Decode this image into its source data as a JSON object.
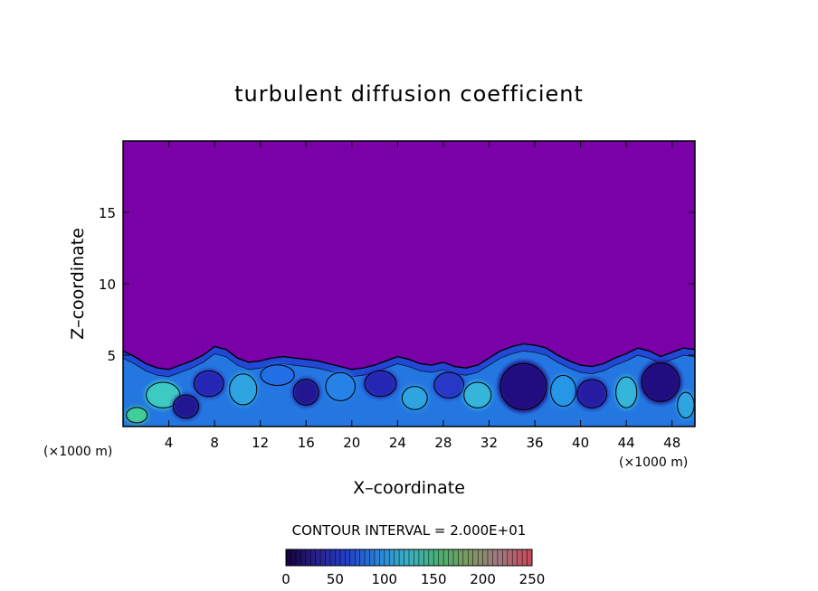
{
  "chart_data": {
    "type": "heatmap",
    "title": "turbulent diffusion coefficient",
    "xlabel": "X–coordinate",
    "ylabel": "Z–coordinate",
    "x_unit_left": "(×1000 m)",
    "x_unit_right": "(×1000 m)",
    "xlim": [
      0,
      50
    ],
    "ylim": [
      0,
      20
    ],
    "x_ticks": [
      4,
      8,
      12,
      16,
      20,
      24,
      28,
      32,
      36,
      40,
      44,
      48
    ],
    "y_ticks": [
      5,
      10,
      15
    ],
    "contour_interval_text": "CONTOUR INTERVAL = 2.000E+01",
    "contour_interval": 20,
    "colorbar": {
      "min": 0,
      "max": 250,
      "ticks": [
        0,
        50,
        100,
        150,
        200,
        250
      ]
    },
    "background_value": 0,
    "turbulent_layer_top_profile": {
      "x": [
        0,
        1,
        2,
        3,
        4,
        5,
        6,
        7,
        8,
        9,
        10,
        11,
        12,
        13,
        14,
        15,
        16,
        17,
        18,
        19,
        20,
        21,
        22,
        23,
        24,
        25,
        26,
        27,
        28,
        29,
        30,
        31,
        32,
        33,
        34,
        35,
        36,
        37,
        38,
        39,
        40,
        41,
        42,
        43,
        44,
        45,
        46,
        47,
        48,
        49,
        50
      ],
      "z": [
        5.3,
        4.9,
        4.4,
        4.1,
        4.0,
        4.3,
        4.6,
        5.0,
        5.6,
        5.4,
        4.8,
        4.5,
        4.6,
        4.8,
        4.9,
        4.8,
        4.7,
        4.6,
        4.4,
        4.2,
        4.0,
        4.1,
        4.3,
        4.6,
        4.9,
        4.7,
        4.4,
        4.3,
        4.5,
        4.2,
        4.1,
        4.3,
        4.8,
        5.3,
        5.6,
        5.8,
        5.7,
        5.5,
        5.0,
        4.6,
        4.3,
        4.2,
        4.4,
        4.8,
        5.1,
        5.5,
        5.3,
        4.9,
        5.2,
        5.5,
        5.4
      ]
    },
    "eddies": [
      {
        "x": 3.5,
        "z": 2.2,
        "rx": 1.6,
        "rz": 1.0,
        "value": 120
      },
      {
        "x": 1.2,
        "z": 0.8,
        "rx": 1.0,
        "rz": 0.6,
        "value": 140
      },
      {
        "x": 5.5,
        "z": 1.4,
        "rx": 1.2,
        "rz": 0.9,
        "value": 10
      },
      {
        "x": 7.5,
        "z": 3.0,
        "rx": 1.4,
        "rz": 1.0,
        "value": 20
      },
      {
        "x": 10.5,
        "z": 2.6,
        "rx": 1.3,
        "rz": 1.2,
        "value": 90
      },
      {
        "x": 13.5,
        "z": 3.6,
        "rx": 1.6,
        "rz": 0.8,
        "value": 60
      },
      {
        "x": 16.0,
        "z": 2.4,
        "rx": 1.2,
        "rz": 1.0,
        "value": 10
      },
      {
        "x": 19.0,
        "z": 2.8,
        "rx": 1.4,
        "rz": 1.1,
        "value": 70
      },
      {
        "x": 22.5,
        "z": 3.0,
        "rx": 1.5,
        "rz": 1.0,
        "value": 20
      },
      {
        "x": 25.5,
        "z": 2.0,
        "rx": 1.2,
        "rz": 0.9,
        "value": 90
      },
      {
        "x": 28.5,
        "z": 2.9,
        "rx": 1.4,
        "rz": 1.0,
        "value": 30
      },
      {
        "x": 31.0,
        "z": 2.2,
        "rx": 1.3,
        "rz": 1.0,
        "value": 100
      },
      {
        "x": 35.0,
        "z": 2.8,
        "rx": 2.2,
        "rz": 1.8,
        "value": 5
      },
      {
        "x": 38.5,
        "z": 2.5,
        "rx": 1.2,
        "rz": 1.2,
        "value": 80
      },
      {
        "x": 41.0,
        "z": 2.3,
        "rx": 1.4,
        "rz": 1.1,
        "value": 15
      },
      {
        "x": 44.0,
        "z": 2.4,
        "rx": 1.0,
        "rz": 1.2,
        "value": 100
      },
      {
        "x": 47.0,
        "z": 3.1,
        "rx": 1.8,
        "rz": 1.5,
        "value": 5
      },
      {
        "x": 49.2,
        "z": 1.5,
        "rx": 0.8,
        "rz": 1.0,
        "value": 90
      }
    ]
  }
}
